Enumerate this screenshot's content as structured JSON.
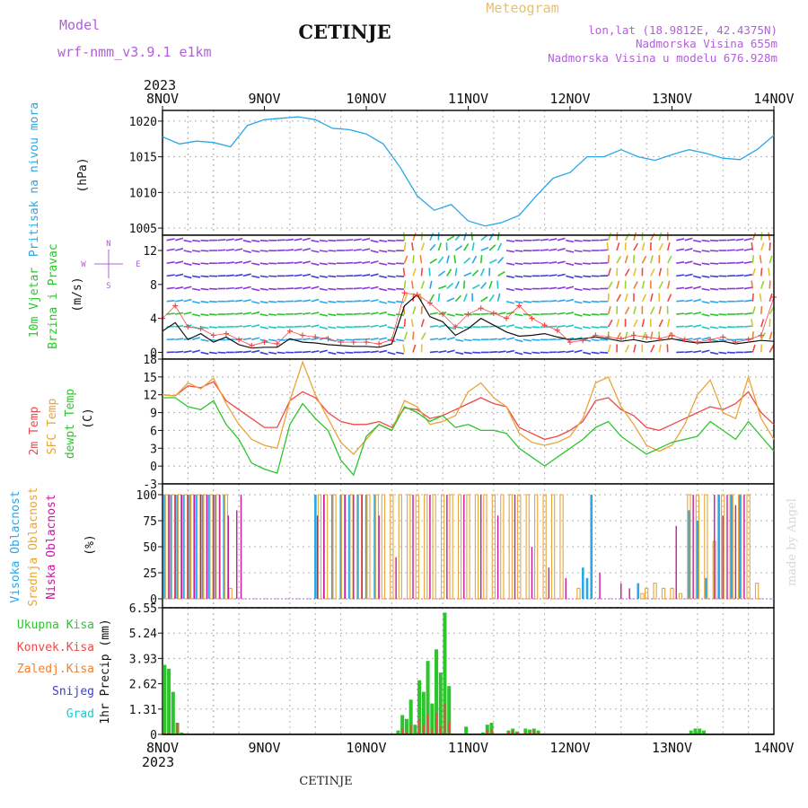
{
  "header": {
    "model_label": "Model",
    "model_name": "wrf-nmm_v3.9.1 e1km",
    "station": "CETINJE",
    "meteogram_label": "Meteogram",
    "coords": "lon,lat (18.9812E, 42.4375N)",
    "altitude": "Nadmorska Visina 655m",
    "model_altitude": "Nadmorska Visina u modelu 676.928m",
    "footer_station": "CETINJE",
    "credit": "made by Angel"
  },
  "colors": {
    "pressure": "#2aa7e8",
    "temp2m": "#f04848",
    "sfc": "#e8a53a",
    "dew": "#2cc52c",
    "high": "#2aa7e8",
    "mid": "#e8a53a",
    "low": "#c8189c",
    "total": "#2cc52c",
    "conv": "#f04848",
    "frozen": "#f08030",
    "snow": "#3c3cd8",
    "grad": "#22c8c8",
    "wind_label": "#2cc52c",
    "purple": "#b060d8"
  },
  "chart_data": [
    {
      "type": "line",
      "title": "Pritisak na nivou mora",
      "ylabel": "(hPa)",
      "ylim": [
        1004,
        1021.5
      ],
      "yticks": [
        "1005",
        "1010",
        "1015",
        "1020"
      ],
      "x_hours": [
        0,
        4,
        8,
        12,
        16,
        20,
        24,
        28,
        32,
        36,
        40,
        44,
        48,
        52,
        56,
        60,
        64,
        68,
        72,
        76,
        80,
        84,
        88,
        92,
        96,
        100,
        104,
        108,
        112,
        116,
        120,
        124,
        128,
        132,
        136,
        140,
        144
      ],
      "series": [
        {
          "values": [
            1017.8,
            1016.8,
            1017.2,
            1017.0,
            1016.4,
            1019.4,
            1020.2,
            1020.4,
            1020.6,
            1020.2,
            1019.0,
            1018.8,
            1018.2,
            1016.8,
            1013.5,
            1009.5,
            1007.5,
            1008.3,
            1006.0,
            1005.3,
            1005.8,
            1006.8,
            1009.5,
            1012.0,
            1012.8,
            1015.0,
            1015.0,
            1016.0,
            1015.0,
            1014.5,
            1015.3,
            1016.0,
            1015.5,
            1014.8,
            1014.6,
            1016.0,
            1018.0
          ]
        }
      ]
    },
    {
      "type": "line",
      "title": "10m Vjetar Brzina i Pravac",
      "ylabel": "(m/s)",
      "ylim": [
        -0.8,
        13.8
      ],
      "yticks": [
        "0",
        "4",
        "8",
        "12"
      ],
      "compass": [
        "N",
        "W",
        "E",
        "S"
      ],
      "x_hours": [
        0,
        3,
        6,
        9,
        12,
        15,
        18,
        21,
        24,
        27,
        30,
        33,
        36,
        39,
        42,
        45,
        48,
        51,
        54,
        57,
        60,
        63,
        66,
        69,
        72,
        75,
        78,
        81,
        84,
        87,
        90,
        93,
        96,
        99,
        102,
        105,
        108,
        111,
        114,
        117,
        120,
        123,
        126,
        129,
        132,
        135,
        138,
        141,
        144
      ],
      "series": [
        {
          "name": "mean",
          "values": [
            2.5,
            3.5,
            1.5,
            2.2,
            1.2,
            1.8,
            0.9,
            0.5,
            0.6,
            0.6,
            1.6,
            1.2,
            1.1,
            0.9,
            0.8,
            0.7,
            0.7,
            0.6,
            1.0,
            5.5,
            6.8,
            4.2,
            3.6,
            2.0,
            2.8,
            4.0,
            3.2,
            2.4,
            1.9,
            2.0,
            2.2,
            1.8,
            1.5,
            1.6,
            1.8,
            1.6,
            1.3,
            1.5,
            1.2,
            1.4,
            1.6,
            1.3,
            1.1,
            1.2,
            1.3,
            1.0,
            1.2,
            1.4,
            1.3
          ]
        },
        {
          "name": "gust",
          "values": [
            4.0,
            5.5,
            3.0,
            2.8,
            2.0,
            2.2,
            1.5,
            0.8,
            1.2,
            1.0,
            2.5,
            2.0,
            1.8,
            1.6,
            1.2,
            1.2,
            1.2,
            1.0,
            1.5,
            7.0,
            6.8,
            5.8,
            4.5,
            3.0,
            4.5,
            5.2,
            4.6,
            4.0,
            5.5,
            4.0,
            3.2,
            2.6,
            1.2,
            1.4,
            2.0,
            1.8,
            1.6,
            2.0,
            1.8,
            1.6,
            2.0,
            1.5,
            1.2,
            1.5,
            1.8,
            1.2,
            1.5,
            2.0,
            6.5
          ]
        }
      ]
    },
    {
      "type": "line",
      "title": "2m Temp",
      "ylabel": "(C)",
      "ylim": [
        -3,
        18
      ],
      "yticks": [
        "-3",
        "0",
        "3",
        "6",
        "9",
        "12",
        "15",
        "18"
      ],
      "x_hours": [
        0,
        3,
        6,
        9,
        12,
        15,
        18,
        21,
        24,
        27,
        30,
        33,
        36,
        39,
        42,
        45,
        48,
        51,
        54,
        57,
        60,
        63,
        66,
        69,
        72,
        75,
        78,
        81,
        84,
        87,
        90,
        93,
        96,
        99,
        102,
        105,
        108,
        111,
        114,
        117,
        120,
        123,
        126,
        129,
        132,
        135,
        138,
        141,
        144
      ],
      "series": [
        {
          "name": "2m Temp",
          "values": [
            12,
            11.8,
            13.5,
            13.2,
            14.2,
            11.0,
            9.5,
            8.0,
            6.5,
            6.5,
            11.0,
            12.5,
            11.5,
            9.0,
            7.5,
            7.0,
            7.0,
            7.5,
            6.5,
            9.8,
            9.5,
            8.0,
            8.5,
            9.5,
            10.5,
            11.5,
            10.5,
            10.0,
            6.5,
            5.5,
            4.5,
            5.0,
            6.0,
            7.5,
            11.0,
            11.5,
            9.5,
            8.5,
            6.5,
            6.0,
            7.0,
            8.0,
            9.0,
            10.0,
            9.5,
            10.5,
            12.5,
            9.0,
            7.0
          ]
        },
        {
          "name": "SFC Temp",
          "values": [
            12,
            11.8,
            14.0,
            13.0,
            14.8,
            10.5,
            7.0,
            4.5,
            3.5,
            3.0,
            11.0,
            17.5,
            12.0,
            8.0,
            4.0,
            2.0,
            4.5,
            7.0,
            6.0,
            11.0,
            10.0,
            7.0,
            7.5,
            8.5,
            12.5,
            14.0,
            11.5,
            10.0,
            5.5,
            4.0,
            3.5,
            4.0,
            5.0,
            8.0,
            14.0,
            15.0,
            10.0,
            7.0,
            3.5,
            2.5,
            3.5,
            7.0,
            12.0,
            14.5,
            9.0,
            8.0,
            15.0,
            8.0,
            4.5
          ]
        },
        {
          "name": "dewpt Temp",
          "values": [
            11.5,
            11.5,
            10.0,
            9.5,
            11.0,
            7.0,
            4.5,
            0.5,
            -0.5,
            -1.2,
            7.0,
            10.5,
            8.0,
            6.0,
            1.0,
            -1.5,
            5.0,
            7.0,
            6.0,
            10.0,
            9.0,
            7.5,
            8.5,
            6.5,
            7.0,
            6.0,
            6.0,
            5.5,
            3.0,
            1.5,
            0.0,
            1.5,
            3.0,
            4.5,
            6.5,
            7.5,
            5.0,
            3.5,
            2.0,
            3.0,
            4.0,
            4.5,
            5.0,
            7.5,
            6.0,
            4.5,
            7.5,
            5.0,
            2.5
          ]
        }
      ]
    },
    {
      "type": "bar",
      "title": "Oblacnost",
      "ylabel": "(%)",
      "ylim": [
        0,
        100
      ],
      "yticks": [
        "0",
        "25",
        "50",
        "75",
        "100"
      ],
      "series": [
        {
          "name": "Visoka Oblacnost",
          "hours": [
            0.5,
            2.0,
            3.5,
            5.0,
            6.5,
            8.0,
            9.5,
            11.0,
            12.5,
            14.5,
            36.0,
            40.0,
            42.0,
            44.0,
            46.0,
            48.0,
            50.0,
            99.0,
            100.0,
            101.0,
            112.0,
            124.0,
            126.0,
            128.0,
            131.0,
            134.0,
            136.0
          ],
          "values": [
            100,
            100,
            100,
            100,
            100,
            100,
            100,
            100,
            100,
            100,
            100,
            100,
            100,
            100,
            100,
            100,
            100,
            30,
            20,
            100,
            15,
            85,
            75,
            20,
            100,
            100,
            100
          ]
        },
        {
          "name": "Srednja Oblacnost",
          "hours": [
            1,
            2.5,
            4,
            5.5,
            7,
            8.5,
            10,
            11.5,
            13,
            15,
            16,
            37,
            38.5,
            40.5,
            42.5,
            44.5,
            46.5,
            48.5,
            50.5,
            52,
            54,
            56,
            58,
            60,
            62,
            64,
            66,
            68,
            70,
            72,
            74,
            76,
            78,
            80,
            82,
            84,
            86,
            88,
            90,
            92,
            94,
            98,
            113,
            114,
            116,
            118,
            120,
            122,
            124,
            126,
            128,
            130,
            132,
            134,
            136,
            138,
            140
          ],
          "values": [
            100,
            100,
            100,
            100,
            100,
            100,
            100,
            100,
            100,
            100,
            10,
            100,
            100,
            100,
            100,
            100,
            100,
            100,
            100,
            100,
            100,
            100,
            100,
            100,
            100,
            100,
            100,
            100,
            100,
            100,
            100,
            100,
            100,
            100,
            100,
            100,
            100,
            100,
            100,
            100,
            100,
            10,
            5,
            10,
            15,
            10,
            10,
            5,
            100,
            100,
            100,
            55,
            100,
            100,
            100,
            100,
            15
          ]
        },
        {
          "name": "Niska Oblacnost",
          "hours": [
            1.5,
            3,
            4.5,
            6,
            7.5,
            9,
            10.5,
            12,
            13.5,
            15.5,
            17.5,
            18.5,
            36.5,
            38,
            43,
            45,
            47,
            51,
            55,
            59,
            63,
            67,
            71,
            75,
            79,
            83,
            87,
            91,
            95,
            103,
            108,
            110,
            121,
            125,
            130,
            132,
            133,
            135,
            137
          ],
          "values": [
            100,
            100,
            100,
            100,
            100,
            100,
            100,
            100,
            100,
            80,
            85,
            100,
            80,
            100,
            100,
            100,
            100,
            80,
            40,
            100,
            100,
            100,
            100,
            100,
            80,
            100,
            50,
            30,
            20,
            25,
            15,
            10,
            70,
            100,
            100,
            80,
            100,
            90,
            100
          ]
        }
      ]
    },
    {
      "type": "bar",
      "title": "1hr Precip",
      "ylabel": "1hr Precip (mm)",
      "ylim": [
        0,
        6.55
      ],
      "yticks": [
        "0",
        "1.31",
        "2.62",
        "3.93",
        "5.24",
        "6.55"
      ],
      "legend": [
        "Ukupna Kisa",
        "Konvek.Kisa",
        "Zaledj.Kisa",
        "Snijeg",
        "Grad"
      ],
      "x_hours": [
        0.5,
        1.5,
        2.5,
        3.5,
        4.5,
        55.5,
        56.5,
        57.5,
        58.5,
        59.5,
        60.5,
        61.5,
        62.5,
        63.5,
        64.5,
        65.5,
        66.5,
        67.5,
        71.5,
        75.5,
        76.5,
        77.5,
        81.5,
        82.5,
        83.5,
        85.5,
        86.5,
        87.5,
        88.5,
        124.5,
        125.5,
        126.5,
        127.5
      ],
      "series": [
        {
          "name": "Ukupna Kisa",
          "values": [
            3.6,
            3.4,
            2.2,
            0.6,
            0.1,
            0.2,
            1.0,
            0.8,
            1.8,
            0.5,
            2.8,
            2.2,
            3.8,
            1.6,
            4.4,
            3.2,
            6.3,
            2.5,
            0.4,
            0.1,
            0.5,
            0.6,
            0.2,
            0.3,
            0.15,
            0.3,
            0.25,
            0.3,
            0.2,
            0.2,
            0.3,
            0.3,
            0.2
          ]
        },
        {
          "name": "Konvek.Kisa",
          "values": [
            0.1,
            0.1,
            0.0,
            0.6,
            0.0,
            0.0,
            0.3,
            0.1,
            0.5,
            0.0,
            0.8,
            0.5,
            1.0,
            0.3,
            1.1,
            0.4,
            1.6,
            0.7,
            0.0,
            0.0,
            0.2,
            0.3,
            0.1,
            0.2,
            0.1,
            0.1,
            0.1,
            0.2,
            0.1,
            0.0,
            0.0,
            0.0,
            0.0
          ]
        }
      ]
    }
  ],
  "xaxis": {
    "year": "2023",
    "labels": [
      "8NOV",
      "9NOV",
      "10NOV",
      "11NOV",
      "12NOV",
      "13NOV",
      "14NOV"
    ]
  },
  "left_labels": {
    "pressure": "Pritisak na nivou mora",
    "pressure_unit": "(hPa)",
    "wind1": "10m Vjetar",
    "wind2": "Brzina i Pravac",
    "wind_unit": "(m/s)",
    "temp1": "2m Temp",
    "temp2": "SFC Temp",
    "temp3": "dewpt Temp",
    "temp_unit": "(C)",
    "cloud1": "Visoka Oblacnost",
    "cloud2": "Srednja Oblacnost",
    "cloud3": "Niska Oblacnost",
    "cloud_unit": "(%)",
    "precip_unit": "1hr Precip (mm)"
  }
}
